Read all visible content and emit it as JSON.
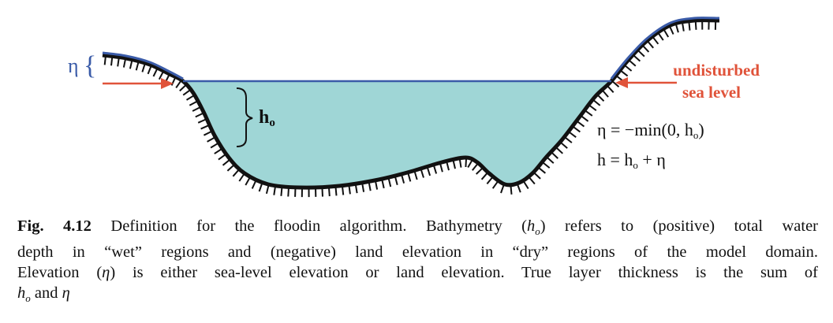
{
  "diagram": {
    "eta_symbol": "η",
    "eta_brace": "{",
    "h0_label": "h",
    "h0_sub": "o",
    "undisturbed_line1": "undisturbed",
    "undisturbed_line2": "sea level",
    "eq1_left": "η = −min(0, h",
    "eq1_sub": "o",
    "eq1_right": ")",
    "eq2_left": "h = h",
    "eq2_sub": "o",
    "eq2_right": " + η",
    "colors": {
      "water": "#9fd6d6",
      "sea_line": "#3a5ba8",
      "land_line": "#3a5ba8",
      "arrow": "#e0533a",
      "text_red": "#e0533a"
    }
  },
  "caption": {
    "fig_label": "Fig. 4.12",
    "line1_a": " Definition  for the floodin  algorithm. Bathymetry (",
    "line1_h": "h",
    "line1_o": "o",
    "line1_b": ") refers to (positive) total water",
    "line2": "depth in “wet” regions and (negative) land elevation in “dry” regions of the model domain.",
    "line3_a": "Elevation (",
    "line3_eta": "η",
    "line3_b": ") is either sea-level elevation or land elevation. True layer thickness is the sum of",
    "line4_h": "h",
    "line4_o": "o",
    "line4_and": " and ",
    "line4_eta": "η"
  }
}
